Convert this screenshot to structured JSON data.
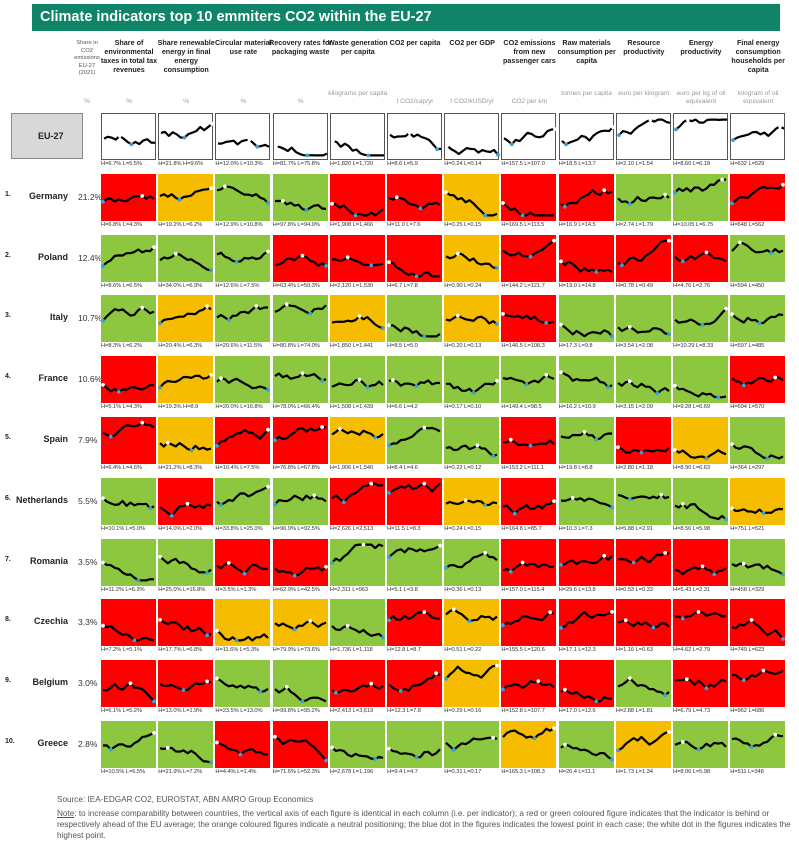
{
  "title": "Climate indicators top 10 emmiters CO2 within the EU-27",
  "share_header": {
    "lines": [
      "Share in",
      "CO2",
      "emissions",
      "EU-27",
      "(2021)"
    ],
    "unit": "%"
  },
  "colors": {
    "red": "#ff0000",
    "green": "#8dc63f",
    "orange": "#f5bc00",
    "title_bar": "#0f8466",
    "low_dot": "#3aa0d8",
    "high_dot": "#ffffff",
    "line": "#000000"
  },
  "columns": [
    {
      "title": "Share of environmental taxes in total tax revenues",
      "unit": "%"
    },
    {
      "title": "Share renewable energy in final energy consumption",
      "unit": "%"
    },
    {
      "title": "Circular material use rate",
      "unit": "%"
    },
    {
      "title": "Recovery rates for packaging waste",
      "unit": "%"
    },
    {
      "title": "Waste generation per capita",
      "unit": "kilograms per capita"
    },
    {
      "title": "CO2 per capita",
      "unit": "t CO2/cap/yr"
    },
    {
      "title": "CO2 per GDP",
      "unit": "t CO2/kUSD/yr"
    },
    {
      "title": "CO2 emissions from new passenger cars",
      "unit": "CO2 per km"
    },
    {
      "title": "Raw materials consumption per capita",
      "unit": "tonnes per capita"
    },
    {
      "title": "Resource productivity",
      "unit": "euro per kilogram"
    },
    {
      "title": "Energy productivity",
      "unit": "euro per kg of oil equivalent"
    },
    {
      "title": "Final energy consumption households per capita",
      "unit": "kilogram of oil equivalent"
    }
  ],
  "eu_label": "EU-27",
  "rows": [
    {
      "num": "",
      "name": "EU-27",
      "share": "",
      "colors": [
        "eu",
        "eu",
        "eu",
        "eu",
        "eu",
        "eu",
        "eu",
        "eu",
        "eu",
        "eu",
        "eu",
        "eu"
      ],
      "hl": [
        "H=6.7% L=5.5%",
        "H=21.8% H=9.6%",
        "H=12.0% L=10.3%",
        "H=81.7% L=75.8%",
        "H=1,820 L=1,720",
        "H=8.6 L=5.9",
        "H=0.24 L=0.14",
        "H=157.5 L=107.0",
        "H=18.5 L=13.7",
        "H=2.10 L=1.54",
        "H=8.60 L=6.18",
        "H=632 L=529"
      ]
    },
    {
      "num": "1.",
      "name": "Germany",
      "share": "21.2%",
      "colors": [
        "red",
        "orange",
        "green",
        "green",
        "red",
        "red",
        "orange",
        "red",
        "red",
        "green",
        "green",
        "red"
      ],
      "hl": [
        "H=6.8% L=4.3%",
        "H=19.2% L=6.2%",
        "H=12.9% L=10.8%",
        "H=97.8% L=94.9%",
        "H=1,908 L=1,466",
        "H=11.0 L=7.6",
        "H=0.25 L=0.15",
        "H=169.5 L=113.5",
        "H=16.9 L=14.5",
        "H=2.74 L=1.79",
        "H=10.05 L=6.75",
        "H=648 L=562"
      ]
    },
    {
      "num": "2.",
      "name": "Poland",
      "share": "12.4%",
      "colors": [
        "green",
        "green",
        "green",
        "red",
        "red",
        "red",
        "orange",
        "red",
        "red",
        "red",
        "red",
        "green"
      ],
      "hl": [
        "H=8.6% L=6.5%",
        "H=34.0% L=6.9%",
        "H=12.6% L=7.5%",
        "H=63.4% L=50.3%",
        "H=2,120 L=1,530",
        "H=6.7 L=7.8",
        "H=0.90 L=0.24",
        "H=144.2 L=121.7",
        "H=19.0 L=14.8",
        "H=0.78 L=0.49",
        "H=4.76 L=2.76",
        "H=594 L=450"
      ]
    },
    {
      "num": "3.",
      "name": "Italy",
      "share": "10.7%",
      "colors": [
        "green",
        "orange",
        "green",
        "green",
        "orange",
        "green",
        "orange",
        "red",
        "green",
        "green",
        "green",
        "green"
      ],
      "hl": [
        "H=8.3% L=6.2%",
        "H=20.4% L=6.3%",
        "H=20.6% L=11.5%",
        "H=80.8% L=74.0%",
        "H=1,850 L=1,441",
        "H=8.5 L=5.0",
        "H=0.20 L=0.13",
        "H=146.5 L=108.3",
        "H=17.3 L=9.8",
        "H=3.54 L=2.08",
        "H=10.29 L=8.33",
        "H=597 L=485"
      ]
    },
    {
      "num": "4.",
      "name": "France",
      "share": "10.6%",
      "colors": [
        "red",
        "orange",
        "green",
        "green",
        "green",
        "green",
        "green",
        "green",
        "green",
        "green",
        "green",
        "red"
      ],
      "hl": [
        "H=5.1% L=4.3%",
        "H=19.3% H=8.9",
        "H=20.0% L=16.8%",
        "H=78.0% L=66.4%",
        "H=1,508 L=1,439",
        "H=6.6 L=4.2",
        "H=0.17 L=0.10",
        "H=149.4 L=98.5",
        "H=16.2 L=10.9",
        "H=3.15 L=2.09",
        "H=9.28 L=6.69",
        "H=694 L=570"
      ]
    },
    {
      "num": "5.",
      "name": "Spain",
      "share": "7.9%",
      "colors": [
        "red",
        "orange",
        "red",
        "red",
        "orange",
        "green",
        "green",
        "red",
        "green",
        "red",
        "orange",
        "green"
      ],
      "hl": [
        "H=6.4% L=4.6%",
        "H=21.2% L=8.3%",
        "H=10.4% L=7.5%",
        "H=76.8% L=67.8%",
        "H=1,906 L=1,540",
        "H=8.4 L=4.6",
        "H=0.22 L=0.12",
        "H=153.2 L=111.1",
        "H=19.8 L=8.8",
        "H=2.80 L=1.18",
        "H=8.90 L=6.63",
        "H=364 L=297"
      ]
    },
    {
      "num": "6.",
      "name": "Netherlands",
      "share": "5.5%",
      "colors": [
        "green",
        "red",
        "green",
        "green",
        "red",
        "red",
        "orange",
        "red",
        "green",
        "green",
        "green",
        "orange"
      ],
      "hl": [
        "H=10.1% L=5.0%",
        "H=14.0% L=2.0%",
        "H=33.8% L=25.0%",
        "H=96.9% L=92.5%",
        "H=2,626 L=2,513",
        "H=11.5 L=8.3",
        "H=0.24 L=0.15",
        "H=164.8 L=85.7",
        "H=10.3 L=7.3",
        "H=5.88 L=2.91",
        "H=8.56 L=5.98",
        "H=751 L=521"
      ]
    },
    {
      "num": "7.",
      "name": "Romania",
      "share": "3.5%",
      "colors": [
        "green",
        "green",
        "red",
        "red",
        "green",
        "green",
        "green",
        "red",
        "red",
        "red",
        "red",
        "green"
      ],
      "hl": [
        "H=11.2% L=6.3%",
        "H=25.0% L=16.8%",
        "H=3.5% L=1.3%",
        "H=62.9% L=42.5%",
        "H=2,311 L=963",
        "H=5.1 L=3.8",
        "H=0.36 L=0.13",
        "H=157.0 L=115.4",
        "H=29.6 L=13.8",
        "H=0.53 L=0.33",
        "H=5.43 L=2.31",
        "H=458 L=329"
      ]
    },
    {
      "num": "8.",
      "name": "Czechia",
      "share": "3.3%",
      "colors": [
        "red",
        "red",
        "orange",
        "orange",
        "green",
        "red",
        "orange",
        "red",
        "red",
        "red",
        "red",
        "red"
      ],
      "hl": [
        "H=7.2% L=5.1%",
        "H=17.7% L=6.8%",
        "H=11.6% L=5.3%",
        "H=79.9% L=73.6%",
        "H=1,736 L=1,118",
        "H=12.8 L=8.7",
        "H=0.51 L=0.22",
        "H=155.5 L=120.6",
        "H=17.1 L=12.3",
        "H=1.16 L=0.63",
        "H=4.62 L=2.79",
        "H=749 L=623"
      ]
    },
    {
      "num": "9.",
      "name": "Belgium",
      "share": "3.0%",
      "colors": [
        "red",
        "red",
        "green",
        "green",
        "red",
        "red",
        "orange",
        "red",
        "red",
        "green",
        "red",
        "red"
      ],
      "hl": [
        "H=6.1% L=5.2%",
        "H=13.0% L=1.9%",
        "H=23.5% L=13.0%",
        "H=99.8% L=95.2%",
        "H=2,413 L=3,619",
        "H=12.3 L=7.8",
        "H=0.29 L=0.16",
        "H=152.8 L=107.7",
        "H=17.0 L=12.6",
        "H=2.88 L=1.81",
        "H=6.79 L=4.73",
        "H=962 L=686"
      ]
    },
    {
      "num": "10.",
      "name": "Greece",
      "share": "2.8%",
      "colors": [
        "green",
        "green",
        "red",
        "red",
        "green",
        "green",
        "green",
        "orange",
        "green",
        "orange",
        "green",
        "green"
      ],
      "hl": [
        "H=10.5% L=6.5%",
        "H=21.9% L=7.2%",
        "H=4.4% L=1.4%",
        "H=71.6% L=52.3%",
        "H=2,678 L=1,196",
        "H=9.4 L=4.7",
        "H=0.31 L=0.17",
        "H=165.3 L=108.3",
        "H=26.4 L=11.1",
        "H=1.73 L=1.34",
        "H=8.06 L=5.98",
        "H=511 L=348"
      ]
    }
  ],
  "chart_data": {
    "type": "heatmap",
    "title": "Climate indicators top 10 emmiters CO2 within the EU-27",
    "x": [
      "Share of environmental taxes in total tax revenues",
      "Share renewable energy in final energy consumption",
      "Circular material use rate",
      "Recovery rates for packaging waste",
      "Waste generation per capita",
      "CO2 per capita",
      "CO2 per GDP",
      "CO2 emissions from new passenger cars",
      "Raw materials consumption per capita",
      "Resource productivity",
      "Energy productivity",
      "Final energy consumption households per capita"
    ],
    "y": [
      "EU-27",
      "Germany",
      "Poland",
      "Italy",
      "France",
      "Spain",
      "Netherlands",
      "Romania",
      "Czechia",
      "Belgium",
      "Greece"
    ],
    "share_in_co2_emissions_eu27_2021": {
      "Germany": 21.2,
      "Poland": 12.4,
      "Italy": 10.7,
      "France": 10.6,
      "Spain": 7.9,
      "Netherlands": 5.5,
      "Romania": 3.5,
      "Czechia": 3.3,
      "Belgium": 3.0,
      "Greece": 2.8
    },
    "legend": {
      "red": "behind EU average",
      "green": "ahead of EU average",
      "orange": "neutral positioning",
      "blue_dot": "lowest point",
      "white_dot": "highest point"
    }
  },
  "source": "Source: IEA-EDGAR CO2, EUROSTAT, ABN AMRO Group Economics",
  "note_label": "Note",
  "note_text": ": to increase comparability between countries, the vertical axis of each figure is identical in each column (i.e. per indicator); a red or green coloured figure indicates that the indicator is behind or respectively ahead of the EU average; the orange coloured figures indicate a neutral positioning; the blue dot in the figures indicates the lowest point in each case; the white dot in the figures indicates the highest point."
}
